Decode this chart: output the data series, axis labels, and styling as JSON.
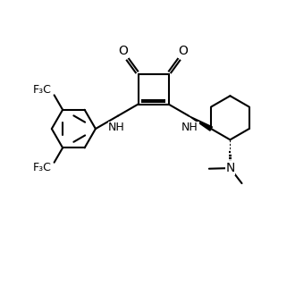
{
  "background": "#ffffff",
  "line_width": 1.5,
  "font_size": 9,
  "fig_size": [
    3.3,
    3.3
  ],
  "dpi": 100,
  "xlim": [
    0,
    10
  ],
  "ylim": [
    0,
    10
  ]
}
